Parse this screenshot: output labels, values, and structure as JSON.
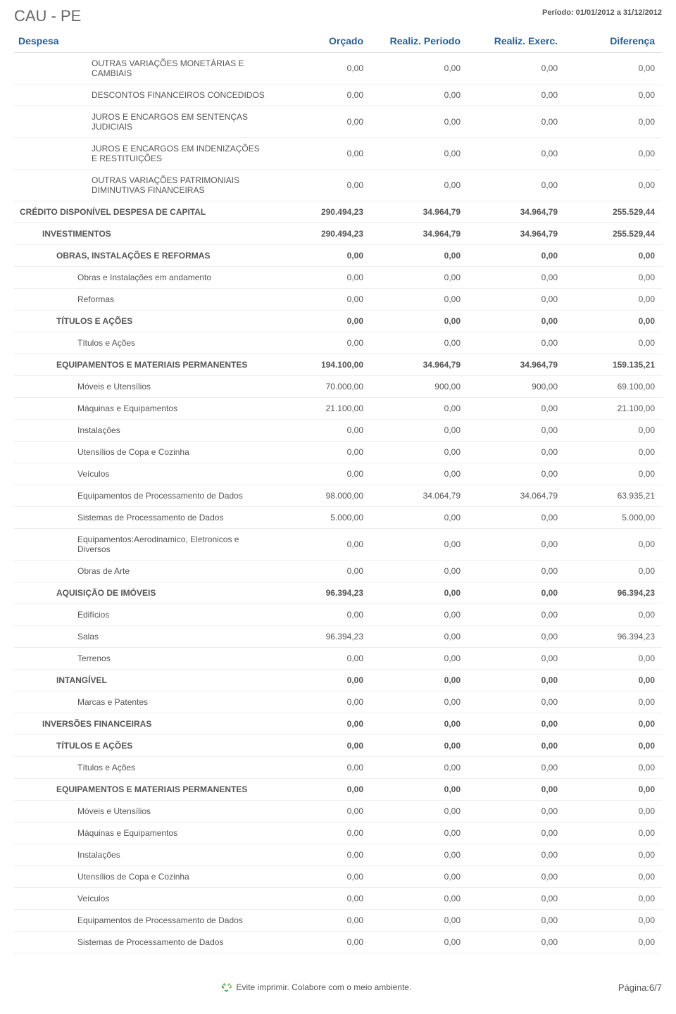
{
  "header": {
    "title": "CAU - PE",
    "period": "Período: 01/01/2012 a 31/12/2012"
  },
  "columns": [
    "Despesa",
    "Orçado",
    "Realiz. Periodo",
    "Realiz. Exerc.",
    "Diferença"
  ],
  "rows": [
    {
      "indent": 4,
      "bold": false,
      "label": "OUTRAS VARIAÇÕES MONETÁRIAS E CAMBIAIS",
      "v": [
        "0,00",
        "0,00",
        "0,00",
        "0,00"
      ]
    },
    {
      "indent": 4,
      "bold": false,
      "label": "DESCONTOS FINANCEIROS CONCEDIDOS",
      "v": [
        "0,00",
        "0,00",
        "0,00",
        "0,00"
      ]
    },
    {
      "indent": 4,
      "bold": false,
      "label": "JUROS E ENCARGOS EM SENTENÇAS JUDICIAIS",
      "v": [
        "0,00",
        "0,00",
        "0,00",
        "0,00"
      ]
    },
    {
      "indent": 4,
      "bold": false,
      "label": "JUROS E ENCARGOS EM INDENIZAÇÕES E RESTITUIÇÕES",
      "v": [
        "0,00",
        "0,00",
        "0,00",
        "0,00"
      ]
    },
    {
      "indent": 4,
      "bold": false,
      "label": "OUTRAS VARIAÇÕES PATRIMONIAIS DIMINUTIVAS FINANCEIRAS",
      "v": [
        "0,00",
        "0,00",
        "0,00",
        "0,00"
      ]
    },
    {
      "indent": 0,
      "bold": true,
      "label": "CRÉDITO DISPONÍVEL DESPESA DE CAPITAL",
      "v": [
        "290.494,23",
        "34.964,79",
        "34.964,79",
        "255.529,44"
      ]
    },
    {
      "indent": 1,
      "bold": true,
      "label": "INVESTIMENTOS",
      "v": [
        "290.494,23",
        "34.964,79",
        "34.964,79",
        "255.529,44"
      ]
    },
    {
      "indent": 2,
      "bold": true,
      "label": "OBRAS, INSTALAÇÕES E REFORMAS",
      "v": [
        "0,00",
        "0,00",
        "0,00",
        "0,00"
      ]
    },
    {
      "indent": 3,
      "bold": false,
      "label": "Obras e Instalações em andamento",
      "v": [
        "0,00",
        "0,00",
        "0,00",
        "0,00"
      ]
    },
    {
      "indent": 3,
      "bold": false,
      "label": "Reformas",
      "v": [
        "0,00",
        "0,00",
        "0,00",
        "0,00"
      ]
    },
    {
      "indent": 2,
      "bold": true,
      "label": "TÍTULOS E AÇÕES",
      "v": [
        "0,00",
        "0,00",
        "0,00",
        "0,00"
      ]
    },
    {
      "indent": 3,
      "bold": false,
      "label": "Títulos e Ações",
      "v": [
        "0,00",
        "0,00",
        "0,00",
        "0,00"
      ]
    },
    {
      "indent": 2,
      "bold": true,
      "label": "EQUIPAMENTOS E MATERIAIS PERMANENTES",
      "v": [
        "194.100,00",
        "34.964,79",
        "34.964,79",
        "159.135,21"
      ]
    },
    {
      "indent": 3,
      "bold": false,
      "label": "Móveis e Utensílios",
      "v": [
        "70.000,00",
        "900,00",
        "900,00",
        "69.100,00"
      ]
    },
    {
      "indent": 3,
      "bold": false,
      "label": "Máquinas e Equipamentos",
      "v": [
        "21.100,00",
        "0,00",
        "0,00",
        "21.100,00"
      ]
    },
    {
      "indent": 3,
      "bold": false,
      "label": "Instalações",
      "v": [
        "0,00",
        "0,00",
        "0,00",
        "0,00"
      ]
    },
    {
      "indent": 3,
      "bold": false,
      "label": "Utensílios de Copa e Cozinha",
      "v": [
        "0,00",
        "0,00",
        "0,00",
        "0,00"
      ]
    },
    {
      "indent": 3,
      "bold": false,
      "label": "Veículos",
      "v": [
        "0,00",
        "0,00",
        "0,00",
        "0,00"
      ]
    },
    {
      "indent": 3,
      "bold": false,
      "label": "Equipamentos de Processamento de Dados",
      "v": [
        "98.000,00",
        "34.064,79",
        "34.064,79",
        "63.935,21"
      ]
    },
    {
      "indent": 3,
      "bold": false,
      "label": "Sistemas de Processamento de Dados",
      "v": [
        "5.000,00",
        "0,00",
        "0,00",
        "5.000,00"
      ]
    },
    {
      "indent": 3,
      "bold": false,
      "label": "Equipamentos:Aerodinamico, Eletronicos e Diversos",
      "v": [
        "0,00",
        "0,00",
        "0,00",
        "0,00"
      ]
    },
    {
      "indent": 3,
      "bold": false,
      "label": "Obras de Arte",
      "v": [
        "0,00",
        "0,00",
        "0,00",
        "0,00"
      ]
    },
    {
      "indent": 2,
      "bold": true,
      "label": "AQUISIÇÃO DE IMÓVEIS",
      "v": [
        "96.394,23",
        "0,00",
        "0,00",
        "96.394,23"
      ]
    },
    {
      "indent": 3,
      "bold": false,
      "label": "Edifícios",
      "v": [
        "0,00",
        "0,00",
        "0,00",
        "0,00"
      ]
    },
    {
      "indent": 3,
      "bold": false,
      "label": "Salas",
      "v": [
        "96.394,23",
        "0,00",
        "0,00",
        "96.394,23"
      ]
    },
    {
      "indent": 3,
      "bold": false,
      "label": "Terrenos",
      "v": [
        "0,00",
        "0,00",
        "0,00",
        "0,00"
      ]
    },
    {
      "indent": 2,
      "bold": true,
      "label": "INTANGÍVEL",
      "v": [
        "0,00",
        "0,00",
        "0,00",
        "0,00"
      ]
    },
    {
      "indent": 3,
      "bold": false,
      "label": "Marcas e Patentes",
      "v": [
        "0,00",
        "0,00",
        "0,00",
        "0,00"
      ]
    },
    {
      "indent": 1,
      "bold": true,
      "label": "INVERSÕES FINANCEIRAS",
      "v": [
        "0,00",
        "0,00",
        "0,00",
        "0,00"
      ]
    },
    {
      "indent": 2,
      "bold": true,
      "label": "TÍTULOS E AÇÕES",
      "v": [
        "0,00",
        "0,00",
        "0,00",
        "0,00"
      ]
    },
    {
      "indent": 3,
      "bold": false,
      "label": "Títulos e Ações",
      "v": [
        "0,00",
        "0,00",
        "0,00",
        "0,00"
      ]
    },
    {
      "indent": 2,
      "bold": true,
      "label": "EQUIPAMENTOS E MATERIAIS PERMANENTES",
      "v": [
        "0,00",
        "0,00",
        "0,00",
        "0,00"
      ]
    },
    {
      "indent": 3,
      "bold": false,
      "label": "Móveis e Utensílios",
      "v": [
        "0,00",
        "0,00",
        "0,00",
        "0,00"
      ]
    },
    {
      "indent": 3,
      "bold": false,
      "label": "Máquinas e Equipamentos",
      "v": [
        "0,00",
        "0,00",
        "0,00",
        "0,00"
      ]
    },
    {
      "indent": 3,
      "bold": false,
      "label": "Instalações",
      "v": [
        "0,00",
        "0,00",
        "0,00",
        "0,00"
      ]
    },
    {
      "indent": 3,
      "bold": false,
      "label": "Utensílios de Copa e Cozinha",
      "v": [
        "0,00",
        "0,00",
        "0,00",
        "0,00"
      ]
    },
    {
      "indent": 3,
      "bold": false,
      "label": "Veículos",
      "v": [
        "0,00",
        "0,00",
        "0,00",
        "0,00"
      ]
    },
    {
      "indent": 3,
      "bold": false,
      "label": "Equipamentos de Processamento de Dados",
      "v": [
        "0,00",
        "0,00",
        "0,00",
        "0,00"
      ]
    },
    {
      "indent": 3,
      "bold": false,
      "label": "Sistemas de Processamento de Dados",
      "v": [
        "0,00",
        "0,00",
        "0,00",
        "0,00"
      ]
    }
  ],
  "footer": {
    "message": "Evite imprimir. Colabore com o meio ambiente.",
    "page": "Página:6/7"
  },
  "colors": {
    "header_text": "#2b5e8e",
    "body_text": "#555555",
    "border": "#eeeeee"
  }
}
